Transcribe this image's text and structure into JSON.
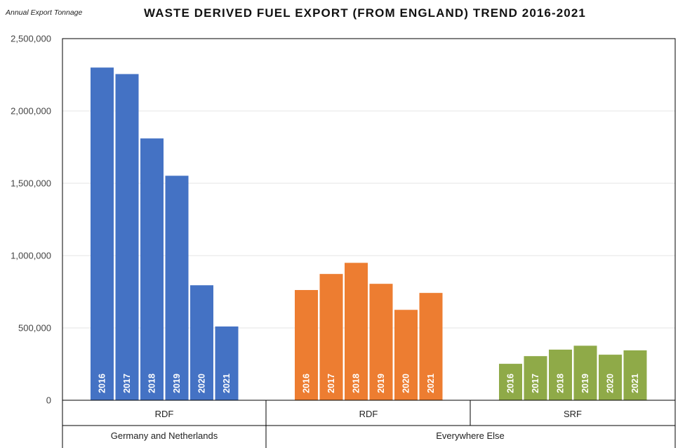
{
  "unit_label": "Annual Export Tonnage",
  "title": "WASTE DERIVED FUEL EXPORT (FROM ENGLAND) TREND 2016-2021",
  "chart_data": {
    "type": "bar",
    "ylim": [
      0,
      2500000
    ],
    "yticks": [
      0,
      500000,
      1000000,
      1500000,
      2000000,
      2500000
    ],
    "ytick_labels": [
      "0",
      "500,000",
      "1,000,000",
      "1,500,000",
      "2,000,000",
      "2,500,000"
    ],
    "grid": true,
    "legend": "none",
    "groups": [
      {
        "subcategory": "RDF",
        "category": "Germany and Netherlands",
        "color": "#4472C4",
        "labels": [
          "2016",
          "2017",
          "2018",
          "2019",
          "2020",
          "2021"
        ],
        "values": [
          2300000,
          2255000,
          1810000,
          1552000,
          795000,
          510000
        ]
      },
      {
        "subcategory": "RDF",
        "category": "Everywhere Else",
        "color": "#ED7D31",
        "labels": [
          "2016",
          "2017",
          "2018",
          "2019",
          "2020",
          "2021"
        ],
        "values": [
          762000,
          873000,
          950000,
          805000,
          625000,
          742000
        ]
      },
      {
        "subcategory": "SRF",
        "category": "Everywhere Else",
        "color": "#8FAA48",
        "labels": [
          "2016",
          "2017",
          "2018",
          "2019",
          "2020",
          "2021"
        ],
        "values": [
          252000,
          305000,
          350000,
          377000,
          315000,
          345000
        ]
      }
    ],
    "categories": [
      "Germany and Netherlands",
      "Everywhere Else"
    ]
  }
}
